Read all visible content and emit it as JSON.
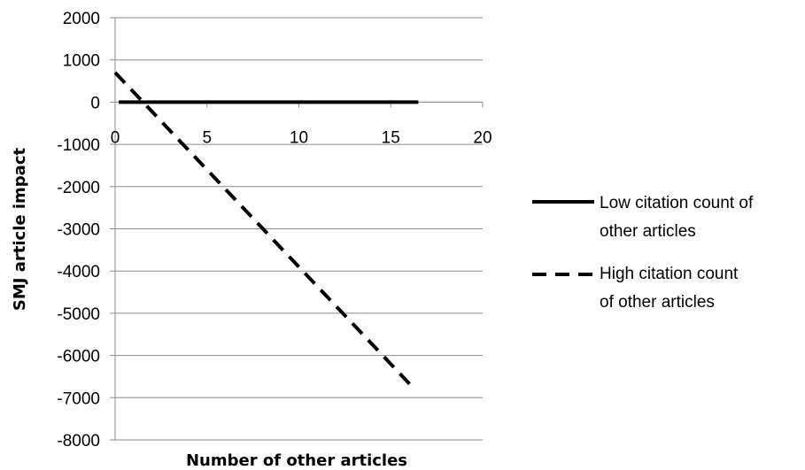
{
  "chart_data": {
    "type": "line",
    "title": "",
    "xlabel": "Number of other articles",
    "ylabel": "SMJ article impact",
    "xlim": [
      0,
      20
    ],
    "ylim": [
      -8000,
      2000
    ],
    "xticks": [
      0,
      5,
      10,
      15,
      20
    ],
    "yticks": [
      2000,
      1000,
      0,
      -1000,
      -2000,
      -3000,
      -4000,
      -5000,
      -6000,
      -7000,
      -8000
    ],
    "grid": "horizontal",
    "legend_position": "right",
    "series": [
      {
        "name": "Low citation count of other articles",
        "legend_lines": [
          "Low citation count of",
          "other articles"
        ],
        "style": "solid",
        "color": "#000000",
        "x": [
          0.2,
          16.5
        ],
        "y": [
          0,
          0
        ]
      },
      {
        "name": "High citation count of other articles",
        "legend_lines": [
          "High citation count",
          "of other articles"
        ],
        "style": "dashed",
        "color": "#000000",
        "x": [
          0,
          16.3
        ],
        "y": [
          700,
          -6800
        ]
      }
    ]
  }
}
